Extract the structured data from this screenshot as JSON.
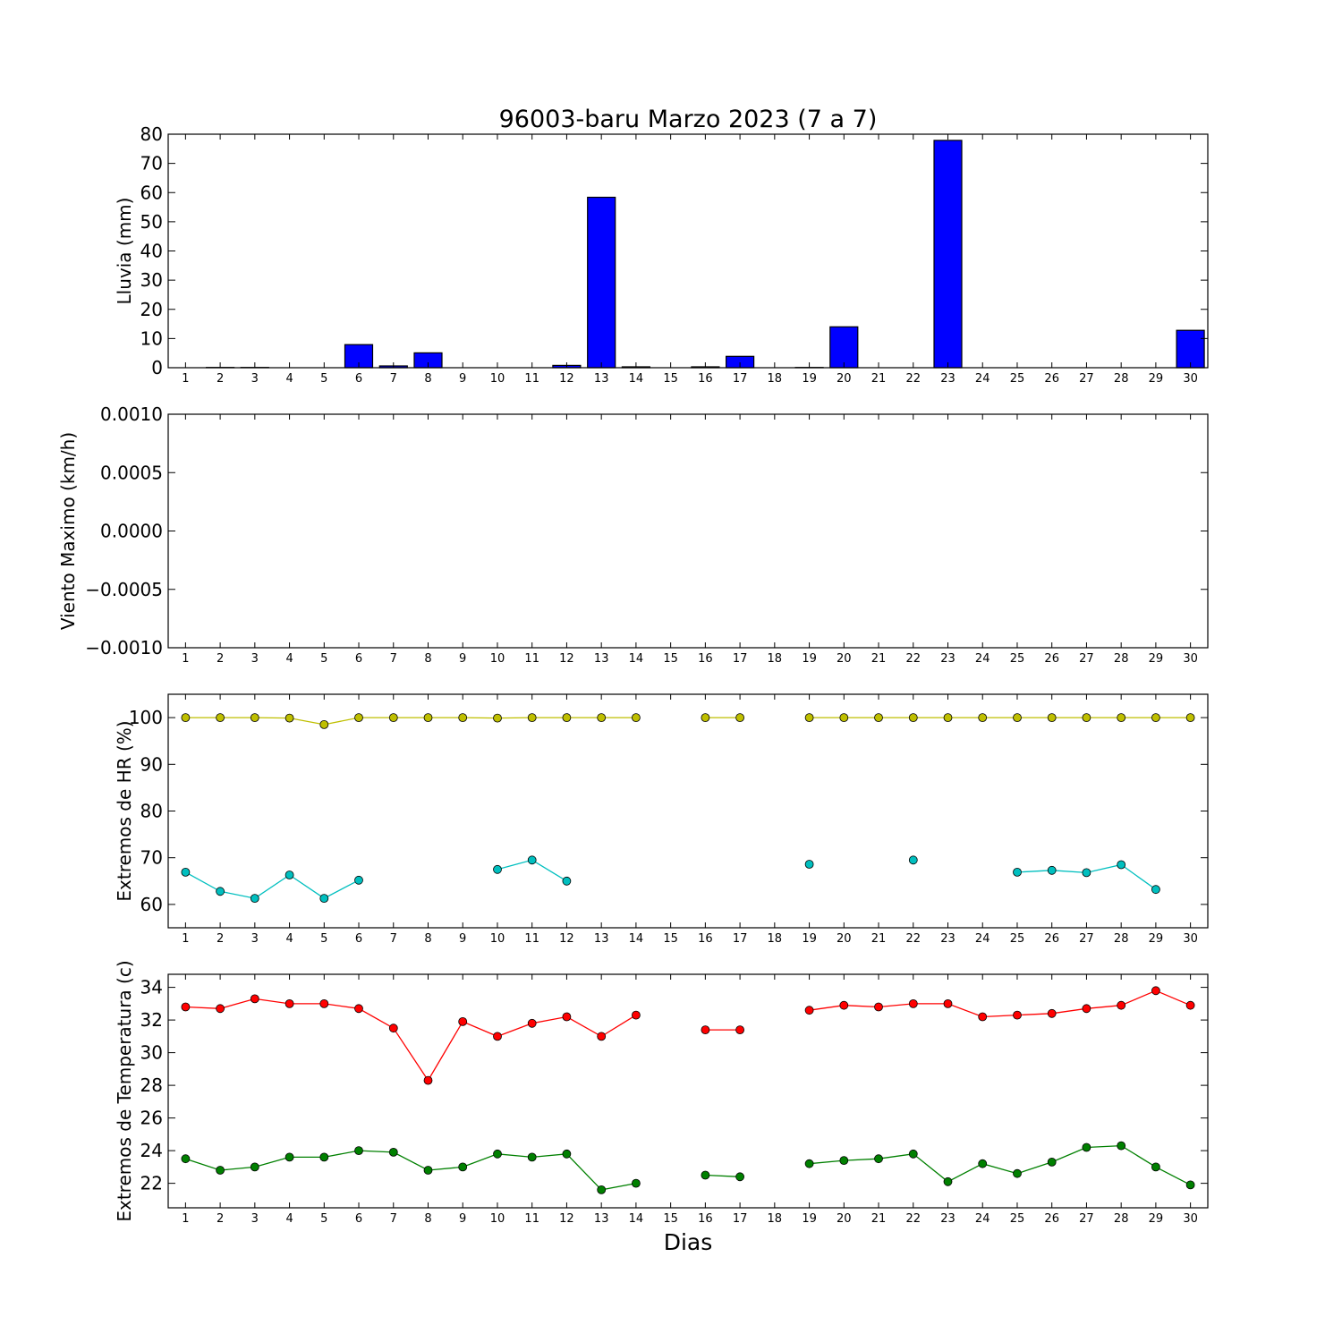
{
  "title": "96003-baru Marzo 2023  (7 a 7)",
  "xlabel": "Dias",
  "chart_data": [
    {
      "type": "bar",
      "ylabel": "Lluvia (mm)",
      "ylim": [
        0,
        80
      ],
      "yticks": [
        "0",
        "10",
        "20",
        "30",
        "40",
        "50",
        "60",
        "70",
        "80"
      ],
      "ytick_values": [
        0,
        10,
        20,
        30,
        40,
        50,
        60,
        70,
        80
      ],
      "x": [
        1,
        2,
        3,
        4,
        5,
        6,
        7,
        8,
        9,
        10,
        11,
        12,
        13,
        14,
        15,
        16,
        17,
        18,
        19,
        20,
        21,
        22,
        23,
        24,
        25,
        26,
        27,
        28,
        29,
        30
      ],
      "xticks": [
        "1",
        "2",
        "3",
        "4",
        "5",
        "6",
        "7",
        "8",
        "9",
        "10",
        "11",
        "12",
        "13",
        "14",
        "15",
        "16",
        "17",
        "18",
        "19",
        "20",
        "21",
        "22",
        "23",
        "24",
        "25",
        "26",
        "27",
        "28",
        "29",
        "30"
      ],
      "series": [
        {
          "color": "#0000ff",
          "values": [
            0,
            0.1,
            0.1,
            0,
            0,
            7.9,
            0.6,
            5.1,
            0,
            0,
            0,
            0.8,
            58.4,
            0.3,
            0,
            0.3,
            3.9,
            0,
            0.1,
            14.0,
            0,
            0,
            77.9,
            0,
            0,
            0,
            0,
            0,
            0,
            12.8
          ]
        }
      ]
    },
    {
      "type": "line",
      "ylabel": "Viento Maximo (km/h)",
      "ylim": [
        -0.001,
        0.001
      ],
      "yticks": [
        "−0.0010",
        "−0.0005",
        "0.0000",
        "0.0005",
        "0.0010"
      ],
      "ytick_values": [
        -0.001,
        -0.0005,
        0,
        0.0005,
        0.001
      ],
      "x": [
        1,
        2,
        3,
        4,
        5,
        6,
        7,
        8,
        9,
        10,
        11,
        12,
        13,
        14,
        15,
        16,
        17,
        18,
        19,
        20,
        21,
        22,
        23,
        24,
        25,
        26,
        27,
        28,
        29,
        30
      ],
      "xticks": [
        "1",
        "2",
        "3",
        "4",
        "5",
        "6",
        "7",
        "8",
        "9",
        "10",
        "11",
        "12",
        "13",
        "14",
        "15",
        "16",
        "17",
        "18",
        "19",
        "20",
        "21",
        "22",
        "23",
        "24",
        "25",
        "26",
        "27",
        "28",
        "29",
        "30"
      ],
      "series": []
    },
    {
      "type": "line",
      "ylabel": "Extremos de HR (%)",
      "ylim": [
        55,
        105
      ],
      "yticks": [
        "60",
        "70",
        "80",
        "90",
        "100"
      ],
      "ytick_values": [
        60,
        70,
        80,
        90,
        100
      ],
      "x": [
        1,
        2,
        3,
        4,
        5,
        6,
        7,
        8,
        9,
        10,
        11,
        12,
        13,
        14,
        15,
        16,
        17,
        18,
        19,
        20,
        21,
        22,
        23,
        24,
        25,
        26,
        27,
        28,
        29,
        30
      ],
      "xticks": [
        "1",
        "2",
        "3",
        "4",
        "5",
        "6",
        "7",
        "8",
        "9",
        "10",
        "11",
        "12",
        "13",
        "14",
        "15",
        "16",
        "17",
        "18",
        "19",
        "20",
        "21",
        "22",
        "23",
        "24",
        "25",
        "26",
        "27",
        "28",
        "29",
        "30"
      ],
      "series": [
        {
          "color": "#bfbf00",
          "values": [
            100,
            100,
            100,
            99.9,
            98.5,
            100,
            100,
            100,
            100,
            99.9,
            100,
            100,
            100,
            100,
            null,
            100,
            100,
            null,
            100,
            100,
            100,
            100,
            100,
            100,
            100,
            100,
            100,
            100,
            100,
            100
          ]
        },
        {
          "color": "#00bfbf",
          "values": [
            66.9,
            62.8,
            61.3,
            66.3,
            61.3,
            65.2,
            null,
            null,
            null,
            67.5,
            69.5,
            65.0,
            null,
            null,
            null,
            null,
            null,
            null,
            68.6,
            null,
            null,
            69.5,
            null,
            null,
            66.9,
            67.3,
            66.8,
            68.5,
            63.2,
            null
          ]
        }
      ]
    },
    {
      "type": "line",
      "ylabel": "Extremos de Temperatura (c)",
      "ylim": [
        20.5,
        34.8
      ],
      "yticks": [
        "22",
        "24",
        "26",
        "28",
        "30",
        "32",
        "34"
      ],
      "ytick_values": [
        22,
        24,
        26,
        28,
        30,
        32,
        34
      ],
      "x": [
        1,
        2,
        3,
        4,
        5,
        6,
        7,
        8,
        9,
        10,
        11,
        12,
        13,
        14,
        15,
        16,
        17,
        18,
        19,
        20,
        21,
        22,
        23,
        24,
        25,
        26,
        27,
        28,
        29,
        30
      ],
      "xticks": [
        "1",
        "2",
        "3",
        "4",
        "5",
        "6",
        "7",
        "8",
        "9",
        "10",
        "11",
        "12",
        "13",
        "14",
        "15",
        "16",
        "17",
        "18",
        "19",
        "20",
        "21",
        "22",
        "23",
        "24",
        "25",
        "26",
        "27",
        "28",
        "29",
        "30"
      ],
      "series": [
        {
          "color": "#ff0000",
          "values": [
            32.8,
            32.7,
            33.3,
            33.0,
            33.0,
            32.7,
            31.5,
            28.3,
            31.9,
            31.0,
            31.8,
            32.2,
            31.0,
            32.3,
            null,
            31.4,
            31.4,
            null,
            32.6,
            32.9,
            32.8,
            33.0,
            33.0,
            32.2,
            32.3,
            32.4,
            32.7,
            32.9,
            33.8,
            32.9
          ]
        },
        {
          "color": "#008000",
          "values": [
            23.5,
            22.8,
            23.0,
            23.6,
            23.6,
            24.0,
            23.9,
            22.8,
            23.0,
            23.8,
            23.6,
            23.8,
            21.6,
            22.0,
            null,
            22.5,
            22.4,
            null,
            23.2,
            23.4,
            23.5,
            23.8,
            22.1,
            23.2,
            22.6,
            23.3,
            24.2,
            24.3,
            23.0,
            21.9
          ]
        }
      ]
    }
  ]
}
